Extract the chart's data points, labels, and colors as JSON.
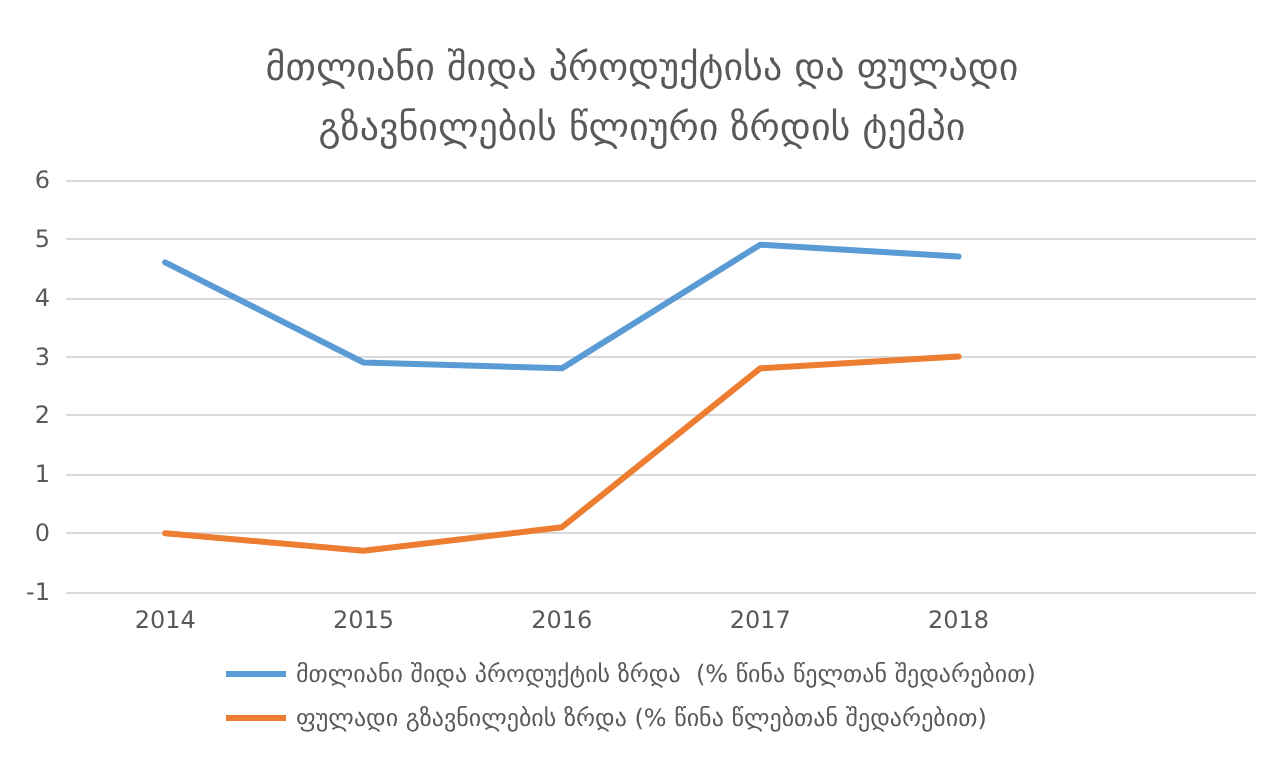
{
  "chart_data": {
    "type": "line",
    "title": "მთლიანი შიდა პროდუქტისა და ფულადი\nგზავნილების წლიური ზრდის ტემპი",
    "categories": [
      "2014",
      "2015",
      "2016",
      "2017",
      "2018",
      null
    ],
    "series": [
      {
        "name": "მთლიანი შიდა პროდუქტის ზრდა  (% წინა წელთან შედარებით)",
        "color": "#5b9bd5",
        "values": [
          4.6,
          2.9,
          2.8,
          4.9,
          4.7,
          null
        ]
      },
      {
        "name": "ფულადი გზავნილების ზრდა (% წინა წლებთან შედარებით)",
        "color": "#ed7d31",
        "values": [
          0,
          -0.3,
          0.1,
          2.8,
          3.0,
          null
        ]
      }
    ],
    "ylim": [
      -1,
      6
    ],
    "yticks": [
      -1,
      0,
      1,
      2,
      3,
      4,
      5,
      6
    ],
    "grid": "y",
    "legend": "bottom",
    "marker": "none",
    "line_style": "solid"
  }
}
